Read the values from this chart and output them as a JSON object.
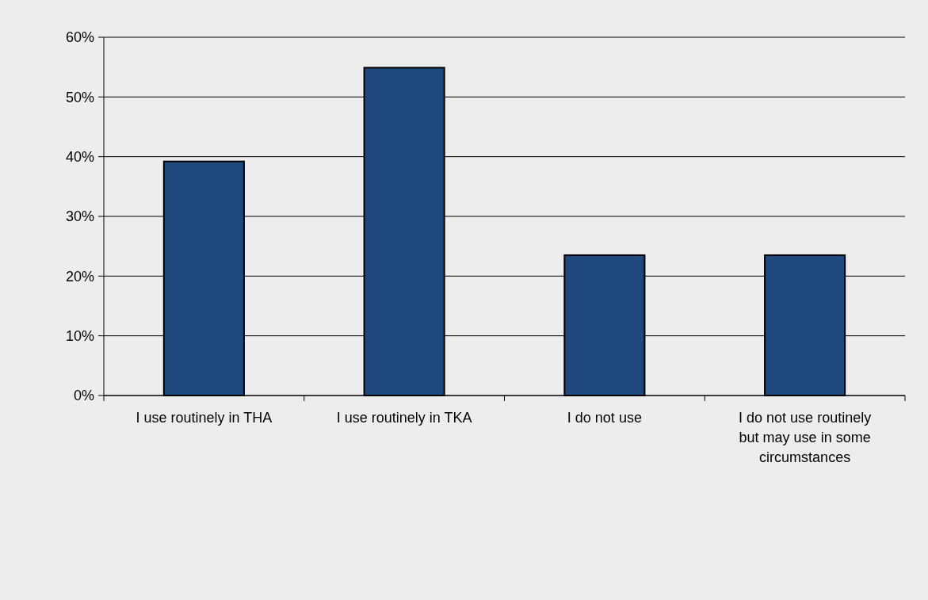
{
  "chart_data": {
    "type": "bar",
    "categories": [
      "I use routinely in THA",
      "I use routinely in TKA",
      "I do not use",
      "I do not use routinely but may use in some circumstances"
    ],
    "values": [
      39.2,
      54.9,
      23.5,
      23.5
    ],
    "color": "#1f497d",
    "ylim": [
      0,
      60
    ],
    "yticks": [
      {
        "value": 0,
        "label": "0%"
      },
      {
        "value": 10,
        "label": "10%"
      },
      {
        "value": 20,
        "label": "20%"
      },
      {
        "value": 30,
        "label": "30%"
      },
      {
        "value": 40,
        "label": "40%"
      },
      {
        "value": 50,
        "label": "50%"
      },
      {
        "value": 60,
        "label": "60%"
      }
    ],
    "grid": "y"
  }
}
